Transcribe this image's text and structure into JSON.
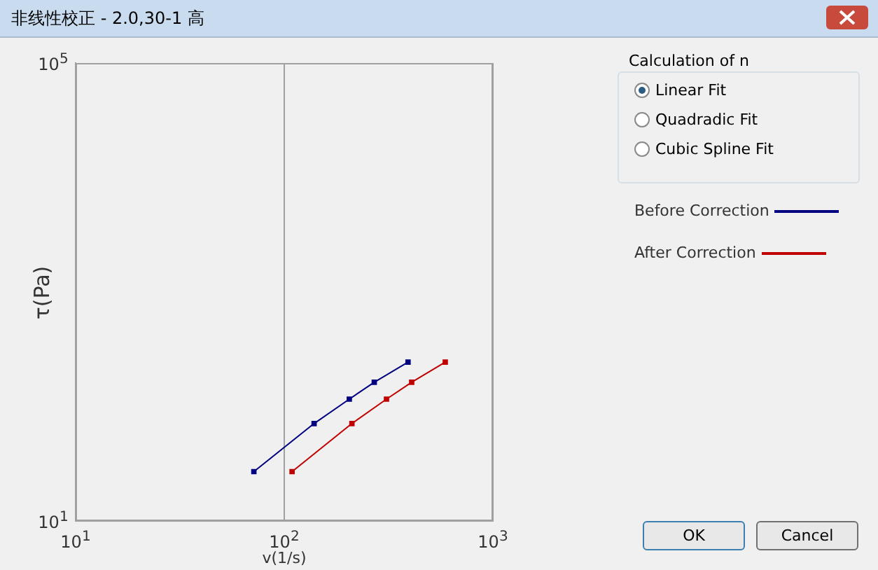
{
  "chart_data": {
    "type": "line",
    "title": "非线性校正 - 2.0,30-1 高",
    "xlabel": "v(1/s)",
    "ylabel": "τ(Pa)",
    "log": "xy",
    "grid": "x",
    "legend": "right",
    "marker": "square",
    "line_style": "solid",
    "xlim": [
      10,
      1000
    ],
    "xticks": [
      {
        "value": 10,
        "label": "10$^{1}$"
      },
      {
        "value": 100,
        "label": "10$^{2}$"
      },
      {
        "value": 1000,
        "label": "10$^{3}$"
      }
    ],
    "ylim": [
      10,
      100000
    ],
    "yticks": [
      {
        "value": 10,
        "label": "10$^{1}$"
      },
      {
        "value": 100000,
        "label": "10$^{5}$"
      }
    ],
    "series": [
      {
        "name": "Before Correction",
        "color": "#000080",
        "x": [
          71.5,
          139,
          205,
          270,
          392
        ],
        "values": [
          27,
          71,
          116,
          163,
          244
        ]
      },
      {
        "name": "After Correction",
        "color": "#c00000",
        "x": [
          109,
          211,
          309,
          408,
          591
        ],
        "values": [
          27,
          71,
          116,
          163,
          244
        ]
      }
    ],
    "annotations": [
      "Calculation of n",
      "Linear Fit",
      "Quadradic Fit",
      "Cubic Spline Fit",
      "OK",
      "Cancel"
    ]
  }
}
